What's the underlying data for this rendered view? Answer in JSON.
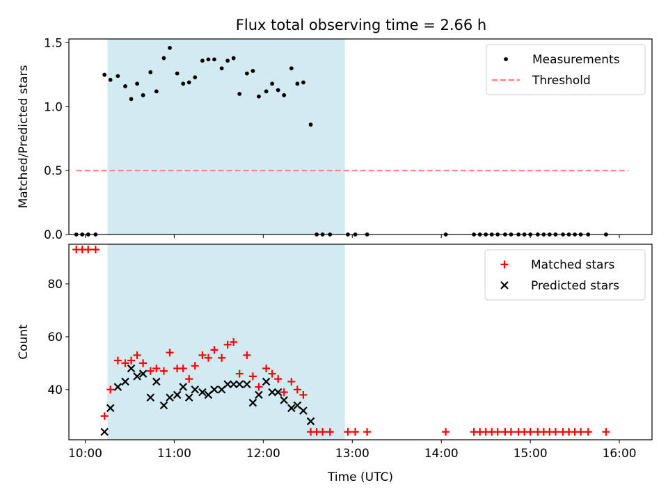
{
  "figure": {
    "title": "Flux total observing time = 2.66 h",
    "shade_color": "#add8e6"
  },
  "chart_data": [
    {
      "type": "scatter",
      "title": "Flux total observing time = 2.66 h",
      "ylabel": "Matched/Predicted stars",
      "xlabel": "",
      "xlim": [
        "09:49",
        "16:22"
      ],
      "ylim": [
        0,
        1.53
      ],
      "x_ticks": [
        "10:00",
        "11:00",
        "12:00",
        "13:00",
        "14:00",
        "15:00",
        "16:00"
      ],
      "y_ticks": [
        0.0,
        0.5,
        1.0,
        1.5
      ],
      "y_tick_labels": [
        "0.0",
        "0.5",
        "1.0",
        "1.5"
      ],
      "shaded_span": [
        "10:15",
        "12:55"
      ],
      "legend_placement": "top-right",
      "grid": false,
      "threshold": {
        "name": "Threshold",
        "value": 0.5,
        "x_range": [
          "09:54",
          "16:06"
        ],
        "color": "#ff7f7f",
        "style": "dashed"
      },
      "series": [
        {
          "name": "Measurements",
          "marker": "dot",
          "color": "#000000",
          "points": [
            [
              "09:54",
              0
            ],
            [
              "09:58",
              0
            ],
            [
              "10:02",
              0
            ],
            [
              "10:07",
              0
            ],
            [
              "10:13",
              1.25
            ],
            [
              "10:17",
              1.21
            ],
            [
              "10:22",
              1.24
            ],
            [
              "10:27",
              1.16
            ],
            [
              "10:31",
              1.06
            ],
            [
              "10:35",
              1.18
            ],
            [
              "10:39",
              1.09
            ],
            [
              "10:44",
              1.27
            ],
            [
              "10:48",
              1.12
            ],
            [
              "10:53",
              1.38
            ],
            [
              "10:57",
              1.46
            ],
            [
              "11:02",
              1.26
            ],
            [
              "11:06",
              1.18
            ],
            [
              "11:10",
              1.19
            ],
            [
              "11:14",
              1.23
            ],
            [
              "11:19",
              1.36
            ],
            [
              "11:23",
              1.37
            ],
            [
              "11:27",
              1.37
            ],
            [
              "11:32",
              1.3
            ],
            [
              "11:36",
              1.36
            ],
            [
              "11:40",
              1.38
            ],
            [
              "11:44",
              1.1
            ],
            [
              "11:49",
              1.26
            ],
            [
              "11:53",
              1.28
            ],
            [
              "11:57",
              1.08
            ],
            [
              "12:02",
              1.12
            ],
            [
              "12:06",
              1.18
            ],
            [
              "12:10",
              1.13
            ],
            [
              "12:14",
              1.09
            ],
            [
              "12:19",
              1.3
            ],
            [
              "12:23",
              1.18
            ],
            [
              "12:27",
              1.19
            ],
            [
              "12:32",
              0.86
            ],
            [
              "12:36",
              0
            ],
            [
              "12:40",
              0
            ],
            [
              "12:45",
              0
            ],
            [
              "12:57",
              0
            ],
            [
              "13:02",
              0
            ],
            [
              "13:10",
              0
            ],
            [
              "14:03",
              0
            ],
            [
              "14:22",
              0
            ],
            [
              "14:26",
              0
            ],
            [
              "14:30",
              0
            ],
            [
              "14:34",
              0
            ],
            [
              "14:38",
              0
            ],
            [
              "14:43",
              0
            ],
            [
              "14:47",
              0
            ],
            [
              "14:52",
              0
            ],
            [
              "14:56",
              0
            ],
            [
              "15:00",
              0
            ],
            [
              "15:05",
              0
            ],
            [
              "15:09",
              0
            ],
            [
              "15:13",
              0
            ],
            [
              "15:17",
              0
            ],
            [
              "15:22",
              0
            ],
            [
              "15:26",
              0
            ],
            [
              "15:30",
              0
            ],
            [
              "15:34",
              0
            ],
            [
              "15:39",
              0
            ],
            [
              "15:51",
              0
            ]
          ]
        }
      ]
    },
    {
      "type": "scatter",
      "title": "",
      "ylabel": "Count",
      "xlabel": "Time (UTC)",
      "xlim": [
        "09:49",
        "16:22"
      ],
      "ylim": [
        21,
        95
      ],
      "x_ticks": [
        "10:00",
        "11:00",
        "12:00",
        "13:00",
        "14:00",
        "15:00",
        "16:00"
      ],
      "y_ticks": [
        40,
        60,
        80
      ],
      "y_tick_labels": [
        "40",
        "60",
        "80"
      ],
      "shaded_span": [
        "10:15",
        "12:55"
      ],
      "legend_placement": "top-right",
      "grid": false,
      "series": [
        {
          "name": "Matched stars",
          "marker": "plus",
          "color": "#ff0000",
          "points": [
            [
              "09:54",
              93
            ],
            [
              "09:58",
              93
            ],
            [
              "10:02",
              93
            ],
            [
              "10:07",
              93
            ],
            [
              "10:13",
              30
            ],
            [
              "10:17",
              40
            ],
            [
              "10:22",
              51
            ],
            [
              "10:27",
              50
            ],
            [
              "10:31",
              51
            ],
            [
              "10:35",
              53
            ],
            [
              "10:39",
              50
            ],
            [
              "10:44",
              47
            ],
            [
              "10:48",
              48
            ],
            [
              "10:53",
              47
            ],
            [
              "10:57",
              54
            ],
            [
              "11:02",
              48
            ],
            [
              "11:06",
              48
            ],
            [
              "11:10",
              44
            ],
            [
              "11:14",
              49
            ],
            [
              "11:19",
              53
            ],
            [
              "11:23",
              52
            ],
            [
              "11:27",
              55
            ],
            [
              "11:32",
              52
            ],
            [
              "11:36",
              57
            ],
            [
              "11:40",
              58
            ],
            [
              "11:44",
              46
            ],
            [
              "11:49",
              53
            ],
            [
              "11:53",
              45
            ],
            [
              "11:57",
              41
            ],
            [
              "12:02",
              48
            ],
            [
              "12:06",
              46
            ],
            [
              "12:10",
              44
            ],
            [
              "12:14",
              39
            ],
            [
              "12:19",
              43
            ],
            [
              "12:23",
              40
            ],
            [
              "12:27",
              38
            ],
            [
              "12:32",
              24
            ],
            [
              "12:36",
              24
            ],
            [
              "12:40",
              24
            ],
            [
              "12:45",
              24
            ],
            [
              "12:57",
              24
            ],
            [
              "13:02",
              24
            ],
            [
              "13:10",
              24
            ],
            [
              "14:03",
              24
            ],
            [
              "14:22",
              24
            ],
            [
              "14:26",
              24
            ],
            [
              "14:30",
              24
            ],
            [
              "14:34",
              24
            ],
            [
              "14:38",
              24
            ],
            [
              "14:43",
              24
            ],
            [
              "14:47",
              24
            ],
            [
              "14:52",
              24
            ],
            [
              "14:56",
              24
            ],
            [
              "15:00",
              24
            ],
            [
              "15:05",
              24
            ],
            [
              "15:09",
              24
            ],
            [
              "15:13",
              24
            ],
            [
              "15:17",
              24
            ],
            [
              "15:22",
              24
            ],
            [
              "15:26",
              24
            ],
            [
              "15:30",
              24
            ],
            [
              "15:34",
              24
            ],
            [
              "15:39",
              24
            ],
            [
              "15:51",
              24
            ]
          ]
        },
        {
          "name": "Predicted stars",
          "marker": "x",
          "color": "#000000",
          "points": [
            [
              "10:13",
              24
            ],
            [
              "10:17",
              33
            ],
            [
              "10:22",
              41
            ],
            [
              "10:27",
              43
            ],
            [
              "10:31",
              48
            ],
            [
              "10:35",
              45
            ],
            [
              "10:39",
              46
            ],
            [
              "10:44",
              37
            ],
            [
              "10:48",
              43
            ],
            [
              "10:53",
              34
            ],
            [
              "10:57",
              37
            ],
            [
              "11:02",
              38
            ],
            [
              "11:06",
              41
            ],
            [
              "11:10",
              37
            ],
            [
              "11:14",
              40
            ],
            [
              "11:19",
              39
            ],
            [
              "11:23",
              38
            ],
            [
              "11:27",
              40
            ],
            [
              "11:32",
              40
            ],
            [
              "11:36",
              42
            ],
            [
              "11:40",
              42
            ],
            [
              "11:44",
              42
            ],
            [
              "11:49",
              42
            ],
            [
              "11:53",
              35
            ],
            [
              "11:57",
              38
            ],
            [
              "12:02",
              43
            ],
            [
              "12:06",
              39
            ],
            [
              "12:10",
              39
            ],
            [
              "12:14",
              36
            ],
            [
              "12:19",
              33
            ],
            [
              "12:23",
              34
            ],
            [
              "12:27",
              32
            ],
            [
              "12:32",
              28
            ]
          ]
        }
      ]
    }
  ]
}
